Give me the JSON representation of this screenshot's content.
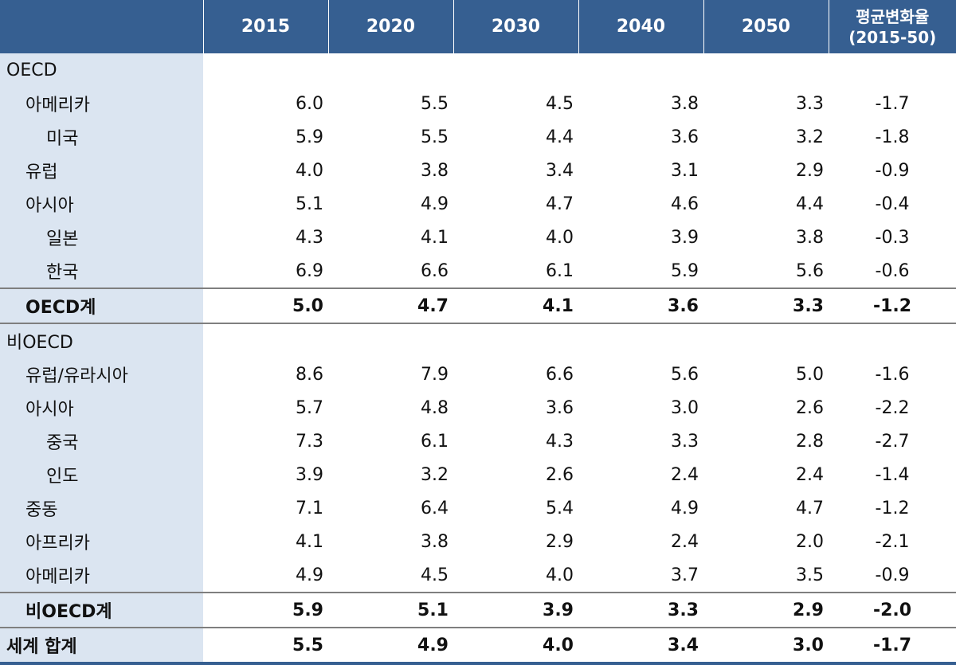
{
  "header": {
    "years": [
      "2015",
      "2020",
      "2030",
      "2040",
      "2050"
    ],
    "rate_line1": "평균변화율",
    "rate_line2": "(2015-50)"
  },
  "rows": [
    {
      "label": "OECD",
      "level": 0,
      "values": [
        "",
        "",
        "",
        "",
        "",
        ""
      ],
      "bold": false,
      "sep": false
    },
    {
      "label": "아메리카",
      "level": 1,
      "values": [
        "6.0",
        "5.5",
        "4.5",
        "3.8",
        "3.3",
        "-1.7"
      ],
      "bold": false,
      "sep": false
    },
    {
      "label": "미국",
      "level": 2,
      "values": [
        "5.9",
        "5.5",
        "4.4",
        "3.6",
        "3.2",
        "-1.8"
      ],
      "bold": false,
      "sep": false
    },
    {
      "label": "유럽",
      "level": 1,
      "values": [
        "4.0",
        "3.8",
        "3.4",
        "3.1",
        "2.9",
        "-0.9"
      ],
      "bold": false,
      "sep": false
    },
    {
      "label": "아시아",
      "level": 1,
      "values": [
        "5.1",
        "4.9",
        "4.7",
        "4.6",
        "4.4",
        "-0.4"
      ],
      "bold": false,
      "sep": false
    },
    {
      "label": "일본",
      "level": 2,
      "values": [
        "4.3",
        "4.1",
        "4.0",
        "3.9",
        "3.8",
        "-0.3"
      ],
      "bold": false,
      "sep": false
    },
    {
      "label": "한국",
      "level": 2,
      "values": [
        "6.9",
        "6.6",
        "6.1",
        "5.9",
        "5.6",
        "-0.6"
      ],
      "bold": false,
      "sep": false
    },
    {
      "label": "OECD계",
      "level": 1,
      "values": [
        "5.0",
        "4.7",
        "4.1",
        "3.6",
        "3.3",
        "-1.2"
      ],
      "bold": true,
      "sep": true
    },
    {
      "label": "비OECD",
      "level": 0,
      "values": [
        "",
        "",
        "",
        "",
        "",
        ""
      ],
      "bold": false,
      "sep": true
    },
    {
      "label": "유럽/유라시아",
      "level": 1,
      "values": [
        "8.6",
        "7.9",
        "6.6",
        "5.6",
        "5.0",
        "-1.6"
      ],
      "bold": false,
      "sep": false
    },
    {
      "label": "아시아",
      "level": 1,
      "values": [
        "5.7",
        "4.8",
        "3.6",
        "3.0",
        "2.6",
        "-2.2"
      ],
      "bold": false,
      "sep": false
    },
    {
      "label": "중국",
      "level": 2,
      "values": [
        "7.3",
        "6.1",
        "4.3",
        "3.3",
        "2.8",
        "-2.7"
      ],
      "bold": false,
      "sep": false
    },
    {
      "label": "인도",
      "level": 2,
      "values": [
        "3.9",
        "3.2",
        "2.6",
        "2.4",
        "2.4",
        "-1.4"
      ],
      "bold": false,
      "sep": false
    },
    {
      "label": "중동",
      "level": 1,
      "values": [
        "7.1",
        "6.4",
        "5.4",
        "4.9",
        "4.7",
        "-1.2"
      ],
      "bold": false,
      "sep": false
    },
    {
      "label": "아프리카",
      "level": 1,
      "values": [
        "4.1",
        "3.8",
        "2.9",
        "2.4",
        "2.0",
        "-2.1"
      ],
      "bold": false,
      "sep": false
    },
    {
      "label": "아메리카",
      "level": 1,
      "values": [
        "4.9",
        "4.5",
        "4.0",
        "3.7",
        "3.5",
        "-0.9"
      ],
      "bold": false,
      "sep": false
    },
    {
      "label": "비OECD계",
      "level": 1,
      "values": [
        "5.9",
        "5.1",
        "3.9",
        "3.3",
        "2.9",
        "-2.0"
      ],
      "bold": true,
      "sep": true
    },
    {
      "label": "세계 합계",
      "level": 0,
      "values": [
        "5.5",
        "4.9",
        "4.0",
        "3.4",
        "3.0",
        "-1.7"
      ],
      "bold": true,
      "sep": true,
      "total": true
    }
  ],
  "colors": {
    "header_bg": "#365f91",
    "label_bg": "#dbe5f1",
    "separator": "#7f7f7f"
  }
}
